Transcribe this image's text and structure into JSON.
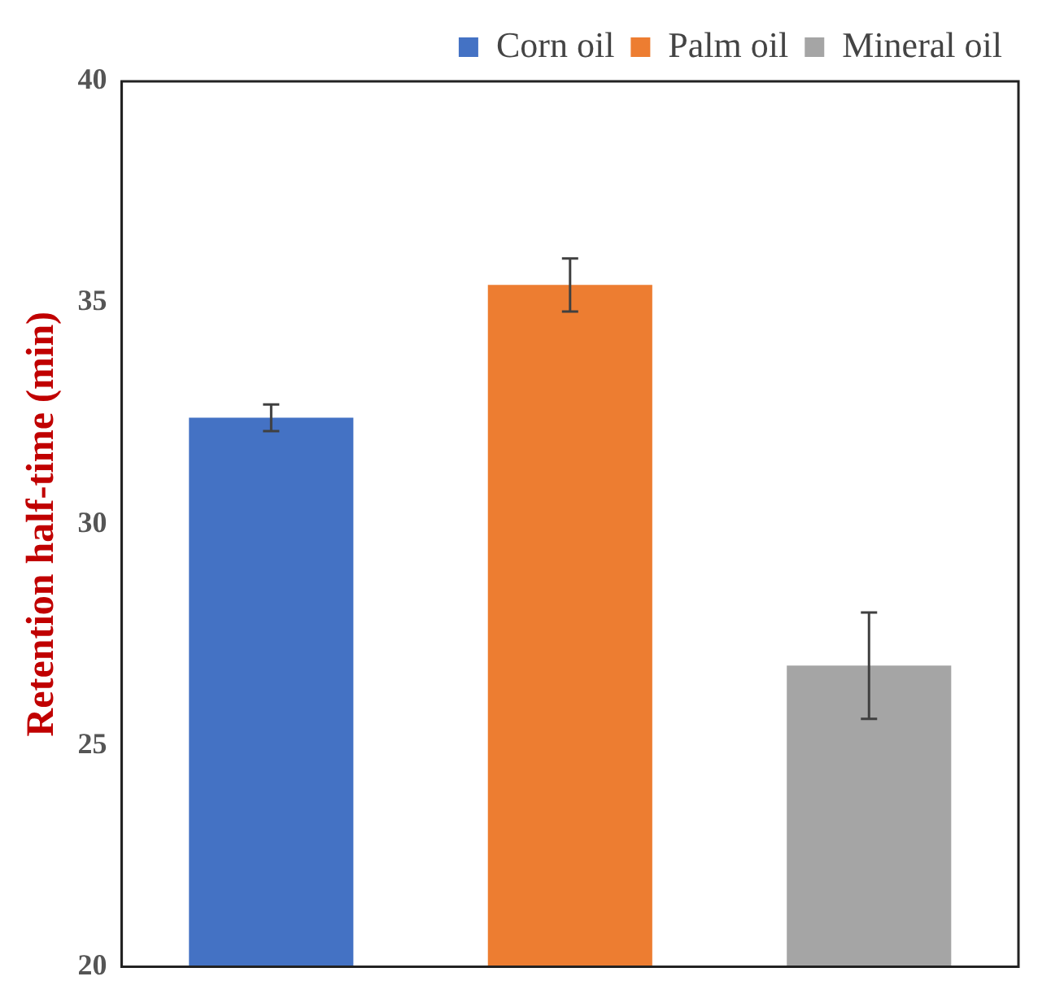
{
  "chart_data": {
    "type": "bar",
    "ylabel": "Retention half-time (min)",
    "categories": [
      null,
      null,
      null
    ],
    "series": [
      {
        "name": "Corn oil",
        "color": "#4472c4",
        "values": [
          32.4,
          null,
          null
        ],
        "errors": [
          0.3,
          null,
          null
        ]
      },
      {
        "name": "Palm oil",
        "color": "#ed7d31",
        "values": [
          null,
          35.4,
          null
        ],
        "errors": [
          null,
          0.6,
          null
        ]
      },
      {
        "name": "Mineral oil",
        "color": "#a5a5a5",
        "values": [
          null,
          null,
          26.8
        ],
        "errors": [
          null,
          null,
          1.2
        ]
      }
    ],
    "ylim": [
      20,
      40
    ],
    "yticks": [
      20,
      25,
      30,
      35,
      40
    ],
    "grid": false,
    "legend": "top",
    "tick_labels": "y"
  }
}
